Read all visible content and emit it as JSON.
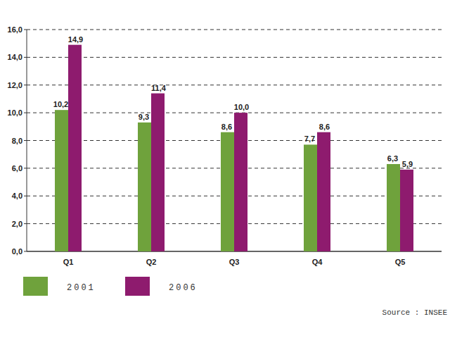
{
  "chart_data": {
    "type": "bar",
    "categories": [
      "Q1",
      "Q2",
      "Q3",
      "Q4",
      "Q5"
    ],
    "series": [
      {
        "name": "2001",
        "color": "#6fa23c",
        "values": [
          10.2,
          9.3,
          8.6,
          7.7,
          6.3
        ],
        "value_labels": [
          "10,2",
          "9,3",
          "8,6",
          "7,7",
          "6,3"
        ]
      },
      {
        "name": "2006",
        "color": "#8e1b6e",
        "values": [
          14.9,
          11.4,
          10.0,
          8.6,
          5.9
        ],
        "value_labels": [
          "14,9",
          "11,4",
          "10,0",
          "8,6",
          "5,9"
        ]
      }
    ],
    "ylim": [
      0,
      16
    ],
    "yticks": [
      {
        "value": 0,
        "label": "0,0"
      },
      {
        "value": 2,
        "label": "2,0"
      },
      {
        "value": 4,
        "label": "4,0"
      },
      {
        "value": 6,
        "label": "6,0"
      },
      {
        "value": 8,
        "label": "8,0"
      },
      {
        "value": 10,
        "label": "10,0"
      },
      {
        "value": 12,
        "label": "12,0"
      },
      {
        "value": 14,
        "label": "14,0"
      },
      {
        "value": 16,
        "label": "16,0"
      }
    ],
    "grid": true,
    "data_labels": true,
    "legend": "bottom-left",
    "annotations": [
      "Source : INSEE"
    ]
  }
}
